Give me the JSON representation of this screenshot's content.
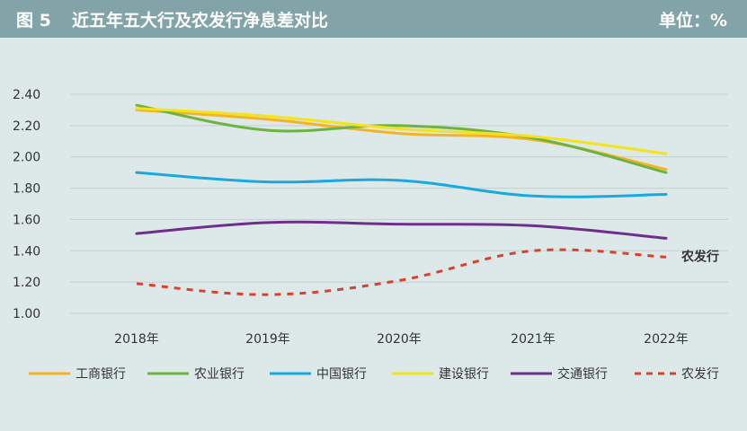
{
  "header": {
    "figure_no": "图 5",
    "title": "近五年五大行及农发行净息差对比",
    "unit": "单位：%"
  },
  "colors": {
    "header_bg": "#82a3a7",
    "plot_bg": "#dde8e8",
    "grid": "#c5cfd0",
    "text": "#333333"
  },
  "chart_data": {
    "type": "line",
    "title": "近五年五大行及农发行净息差对比",
    "categories": [
      "2018年",
      "2019年",
      "2020年",
      "2021年",
      "2022年"
    ],
    "y_ticks": [
      "1.00",
      "1.20",
      "1.40",
      "1.60",
      "1.80",
      "2.00",
      "2.20",
      "2.40"
    ],
    "ylim": [
      1.0,
      2.4
    ],
    "grid": true,
    "legend_position": "bottom",
    "series": [
      {
        "name": "工商银行",
        "color": "#f5b324",
        "dashed": false,
        "values": [
          2.3,
          2.24,
          2.15,
          2.11,
          1.92
        ]
      },
      {
        "name": "农业银行",
        "color": "#6db33f",
        "dashed": false,
        "values": [
          2.33,
          2.17,
          2.2,
          2.12,
          1.9
        ]
      },
      {
        "name": "中国银行",
        "color": "#17a9df",
        "dashed": false,
        "values": [
          1.9,
          1.84,
          1.85,
          1.75,
          1.76
        ]
      },
      {
        "name": "建设银行",
        "color": "#f2e31a",
        "dashed": false,
        "values": [
          2.31,
          2.26,
          2.18,
          2.13,
          2.02
        ]
      },
      {
        "name": "交通银行",
        "color": "#6c2f8c",
        "dashed": false,
        "values": [
          1.51,
          1.58,
          1.57,
          1.56,
          1.48
        ]
      },
      {
        "name": "农发行",
        "color": "#d9412c",
        "dashed": true,
        "values": [
          1.19,
          1.12,
          1.21,
          1.4,
          1.36
        ]
      }
    ],
    "annotation": "农发行"
  }
}
